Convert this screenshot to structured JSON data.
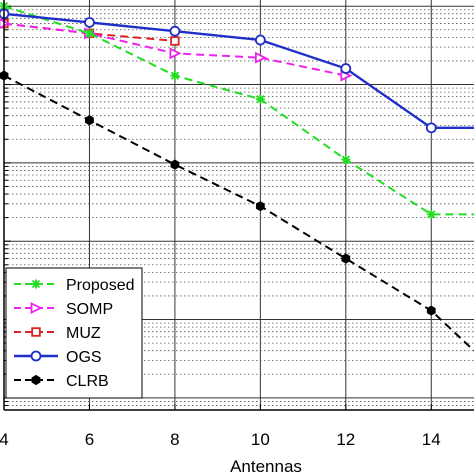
{
  "chart_data": {
    "type": "line",
    "xlabel": "Antennas",
    "ylabel": "",
    "title": "",
    "xlim": [
      4,
      15
    ],
    "x_ticks": [
      4,
      6,
      8,
      10,
      12,
      14
    ],
    "y_scale": "log",
    "ylim": [
      7e-06,
      1.2
    ],
    "grid": true,
    "legend_position": "bottom-left",
    "x": [
      4,
      6,
      8,
      10,
      12,
      14,
      15
    ],
    "series": [
      {
        "name": "Proposed",
        "color": "#22dd22",
        "dash": "dashed",
        "marker": "asterisk",
        "values": [
          1.0,
          0.45,
          0.13,
          0.065,
          0.011,
          0.0022,
          0.0022
        ]
      },
      {
        "name": "SOMP",
        "color": "#ee22ee",
        "dash": "dashed",
        "marker": "triangle-right",
        "values": [
          0.6,
          0.45,
          0.25,
          0.22,
          0.13,
          null,
          null
        ]
      },
      {
        "name": "MUZ",
        "color": "#dd2222",
        "dash": "dashed",
        "marker": "square",
        "values": [
          0.6,
          0.45,
          0.36,
          null,
          null,
          null,
          null
        ]
      },
      {
        "name": "OGS",
        "color": "#1f2fc8",
        "dash": "solid",
        "marker": "circle",
        "values": [
          0.8,
          0.62,
          0.48,
          0.37,
          0.16,
          0.028,
          0.028
        ]
      },
      {
        "name": "CLRB",
        "color": "#000000",
        "dash": "dashed",
        "marker": "hexagon",
        "values": [
          0.13,
          0.035,
          0.0095,
          0.0028,
          0.0006,
          0.00013,
          4e-05
        ]
      }
    ]
  }
}
